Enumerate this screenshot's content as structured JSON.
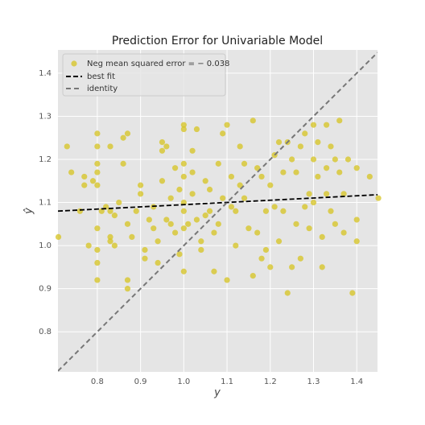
{
  "chart_data": {
    "type": "scatter",
    "title": "Prediction Error for Univariable Model",
    "xlabel": "y",
    "ylabel": "ŷ",
    "xlim": [
      0.709,
      1.448
    ],
    "ylim": [
      0.707,
      1.454
    ],
    "xticks": [
      0.8,
      0.9,
      {
        "value": 1,
        "label": "1.0"
      },
      1.1,
      1.2,
      1.3,
      1.4
    ],
    "yticks": [
      0.8,
      0.9,
      {
        "value": 1,
        "label": "1.0"
      },
      1.1,
      1.2,
      1.3,
      1.4
    ],
    "grid": true,
    "legend": "upper left",
    "x": [
      0.71,
      0.73,
      0.74,
      0.76,
      0.77,
      0.77,
      0.78,
      0.79,
      0.8,
      0.8,
      0.8,
      0.8,
      0.8,
      0.8,
      0.8,
      0.8,
      0.8,
      0.81,
      0.82,
      0.83,
      0.83,
      0.83,
      0.83,
      0.84,
      0.84,
      0.85,
      0.86,
      0.86,
      0.87,
      0.87,
      0.87,
      0.87,
      0.88,
      0.89,
      0.9,
      0.9,
      0.91,
      0.91,
      0.92,
      0.93,
      0.93,
      0.94,
      0.94,
      0.95,
      0.95,
      0.95,
      0.96,
      0.96,
      0.97,
      0.97,
      0.98,
      0.98,
      0.99,
      0.99,
      1.0,
      1.0,
      1.0,
      1.0,
      1.0,
      1.0,
      1.0,
      1.0,
      1.01,
      1.02,
      1.02,
      1.02,
      1.03,
      1.03,
      1.04,
      1.04,
      1.05,
      1.05,
      1.06,
      1.06,
      1.07,
      1.07,
      1.08,
      1.08,
      1.09,
      1.09,
      1.1,
      1.1,
      1.11,
      1.11,
      1.12,
      1.12,
      1.13,
      1.13,
      1.14,
      1.14,
      1.15,
      1.16,
      1.16,
      1.17,
      1.17,
      1.18,
      1.18,
      1.19,
      1.19,
      1.2,
      1.2,
      1.21,
      1.21,
      1.22,
      1.22,
      1.23,
      1.23,
      1.24,
      1.24,
      1.25,
      1.25,
      1.26,
      1.26,
      1.27,
      1.27,
      1.28,
      1.28,
      1.29,
      1.29,
      1.3,
      1.3,
      1.3,
      1.31,
      1.31,
      1.32,
      1.32,
      1.33,
      1.33,
      1.33,
      1.34,
      1.34,
      1.35,
      1.35,
      1.36,
      1.36,
      1.37,
      1.37,
      1.38,
      1.39,
      1.4,
      1.4,
      1.4,
      1.43,
      1.45
    ],
    "series": [
      {
        "name": "Neg mean squared error = − 0.038",
        "color": "#d6c31f",
        "values": [
          1.02,
          1.23,
          1.17,
          1.08,
          1.16,
          1.14,
          1.0,
          1.15,
          1.26,
          1.23,
          1.19,
          1.17,
          1.14,
          1.04,
          0.99,
          0.96,
          0.92,
          1.08,
          1.09,
          1.23,
          1.08,
          1.02,
          1.01,
          1.07,
          1.0,
          1.1,
          1.19,
          1.25,
          1.26,
          1.05,
          0.92,
          0.9,
          1.02,
          1.08,
          1.14,
          1.12,
          0.99,
          0.97,
          1.06,
          1.09,
          1.04,
          0.96,
          1.01,
          1.24,
          1.22,
          1.15,
          1.23,
          1.06,
          1.11,
          1.05,
          1.18,
          1.03,
          1.13,
          0.98,
          1.28,
          1.27,
          1.19,
          1.16,
          1.1,
          1.08,
          1.04,
          0.94,
          1.05,
          1.17,
          1.12,
          1.22,
          1.27,
          1.06,
          1.01,
          0.99,
          1.15,
          1.07,
          1.13,
          1.08,
          0.94,
          1.03,
          1.19,
          1.05,
          1.26,
          1.11,
          1.28,
          0.92,
          1.16,
          1.09,
          1.08,
          1.0,
          1.23,
          1.14,
          1.19,
          1.11,
          1.04,
          1.29,
          0.93,
          1.18,
          1.03,
          1.16,
          0.97,
          1.08,
          0.99,
          1.14,
          0.95,
          1.21,
          1.09,
          1.24,
          1.01,
          1.17,
          1.08,
          1.24,
          0.89,
          1.2,
          0.95,
          1.17,
          1.05,
          1.23,
          0.97,
          1.26,
          1.09,
          1.12,
          1.04,
          1.28,
          1.2,
          1.1,
          1.24,
          1.16,
          1.02,
          0.95,
          1.28,
          1.18,
          1.12,
          1.23,
          1.08,
          1.2,
          1.05,
          1.29,
          1.17,
          1.12,
          1.03,
          1.2,
          0.89,
          1.18,
          1.06,
          1.01,
          1.16,
          1.11
        ]
      }
    ],
    "lines": [
      {
        "name": "best fit",
        "color": "#000000",
        "x": [
          0.709,
          1.448
        ],
        "values": [
          1.08,
          1.118
        ]
      },
      {
        "name": "identity",
        "color": "#777777",
        "x": [
          0.709,
          1.448
        ],
        "values": [
          0.709,
          1.448
        ]
      }
    ]
  }
}
